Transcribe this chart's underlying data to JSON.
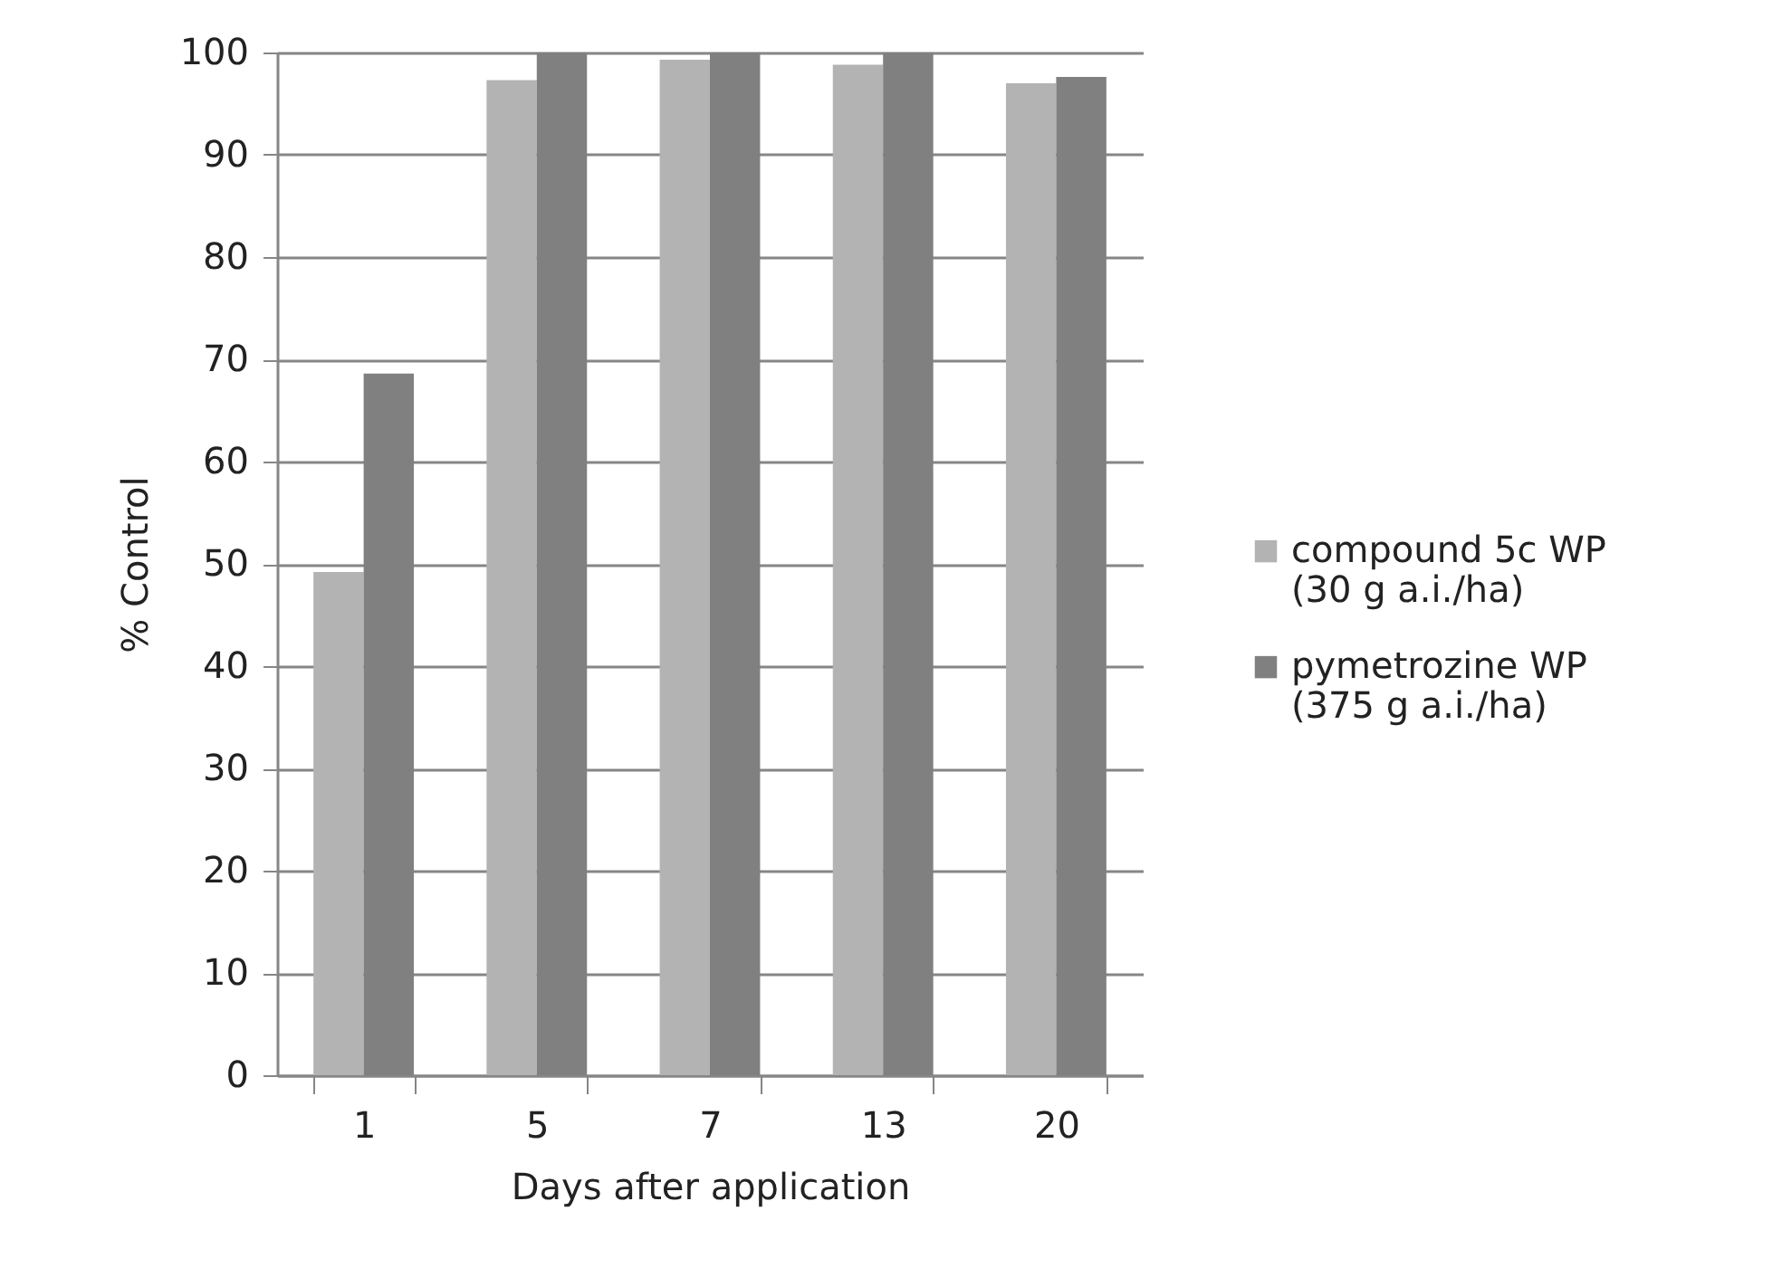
{
  "chart_data": {
    "type": "bar",
    "xlabel": "Days after application",
    "ylabel": "% Control",
    "categories": [
      "1",
      "5",
      "7",
      "13",
      "20"
    ],
    "series": [
      {
        "name": "compound 5c WP (30 g a.i./ha)",
        "color": "#b3b3b3",
        "values": [
          49.2,
          97.3,
          99.3,
          98.8,
          97.0
        ]
      },
      {
        "name": "pymetrozine WP (375 g a.i./ha)",
        "color": "#808080",
        "values": [
          68.6,
          100,
          100,
          100,
          97.6
        ]
      }
    ],
    "ylim": [
      0,
      100
    ],
    "yticks": [
      0,
      10,
      20,
      30,
      40,
      50,
      60,
      70,
      80,
      90,
      100
    ],
    "grid": "y",
    "legend": "right"
  }
}
